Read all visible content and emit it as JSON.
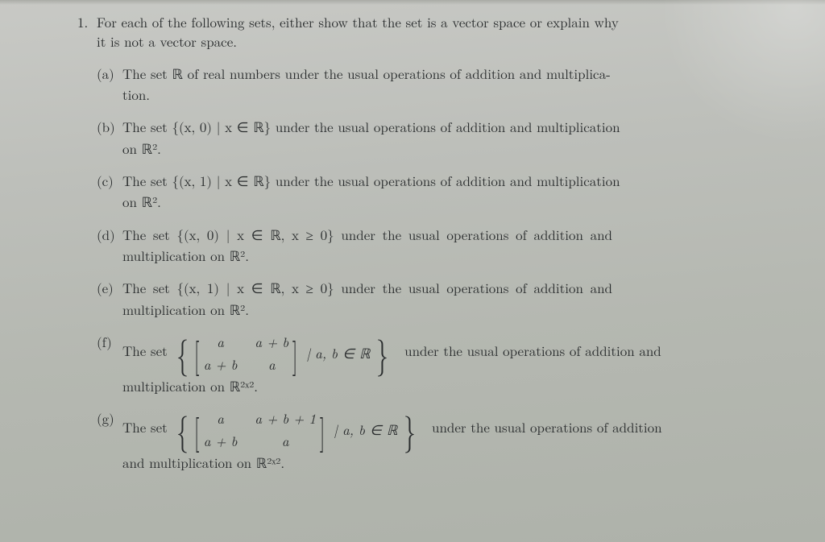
{
  "problem": {
    "number": "1.",
    "prompt_line1": "For each of the following sets, either show that the set is a vector space or explain why",
    "prompt_line2": "it is not a vector space."
  },
  "subparts": {
    "a": {
      "label": "(a)",
      "line1": "The set ℝ of real numbers under the usual operations of addition and multiplica-",
      "line2": "tion."
    },
    "b": {
      "label": "(b)",
      "line1": "The set {(x, 0) | x ∈ ℝ} under the usual operations of addition and multiplication",
      "line2": "on ℝ²."
    },
    "c": {
      "label": "(c)",
      "line1": "The set {(x, 1) | x ∈ ℝ} under the usual operations of addition and multiplication",
      "line2": "on ℝ²."
    },
    "d": {
      "label": "(d)",
      "line1": "The set  {(x, 0)  |  x  ∈  ℝ, x  ≥  0}  under  the  usual  operations  of  addition  and",
      "line2": "multiplication on ℝ²."
    },
    "e": {
      "label": "(e)",
      "line1": "The set  {(x, 1)  |  x  ∈  ℝ, x  ≥  0}  under  the  usual  operations  of  addition  and",
      "line2": "multiplication on ℝ²."
    },
    "f": {
      "label": "(f)",
      "lead": "The set",
      "matrix": {
        "r1c1": "a",
        "r1c2": "a + b",
        "r2c1": "a + b",
        "r2c2": "a"
      },
      "condition": "| a, b ∈ ℝ",
      "tail": "under the usual operations of addition and",
      "line2": "multiplication on ℝ²ˣ²."
    },
    "g": {
      "label": "(g)",
      "lead": "The set",
      "matrix": {
        "r1c1": "a",
        "r1c2": "a + b + 1",
        "r2c1": "a + b",
        "r2c2": "a"
      },
      "condition": "| a, b ∈ ℝ",
      "tail": "under the usual operations of addition",
      "line2": "and multiplication on ℝ²ˣ²."
    }
  }
}
